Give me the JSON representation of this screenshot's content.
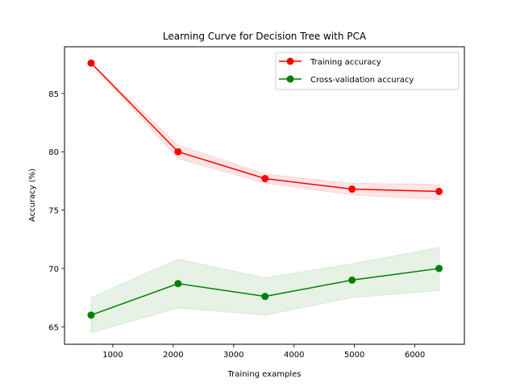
{
  "chart_data": {
    "type": "line",
    "title": "Learning Curve for Decision Tree with PCA",
    "xlabel": "Training examples",
    "ylabel": "Accuracy (%)",
    "xlim": [
      200,
      6820
    ],
    "ylim": [
      63.5,
      89
    ],
    "xticks": [
      1000,
      2000,
      3000,
      4000,
      5000,
      6000
    ],
    "yticks": [
      65,
      70,
      75,
      80,
      85
    ],
    "grid": false,
    "legend_position": "top-right",
    "x": [
      640,
      2080,
      3520,
      4960,
      6400
    ],
    "series": [
      {
        "name": "Training accuracy",
        "color": "#ff0000",
        "band_color": "#ff0000",
        "values": [
          87.6,
          80.0,
          77.7,
          76.8,
          76.6
        ],
        "band_lower": [
          87.6,
          79.4,
          77.3,
          76.3,
          75.9
        ],
        "band_upper": [
          87.6,
          80.6,
          78.1,
          77.3,
          77.2
        ]
      },
      {
        "name": "Cross-validation accuracy",
        "color": "#008000",
        "band_color": "#008000",
        "values": [
          66.0,
          68.7,
          67.6,
          69.0,
          70.0
        ],
        "band_lower": [
          64.5,
          66.6,
          66.0,
          67.5,
          68.1
        ],
        "band_upper": [
          67.5,
          70.8,
          69.2,
          70.4,
          71.8
        ]
      }
    ]
  }
}
